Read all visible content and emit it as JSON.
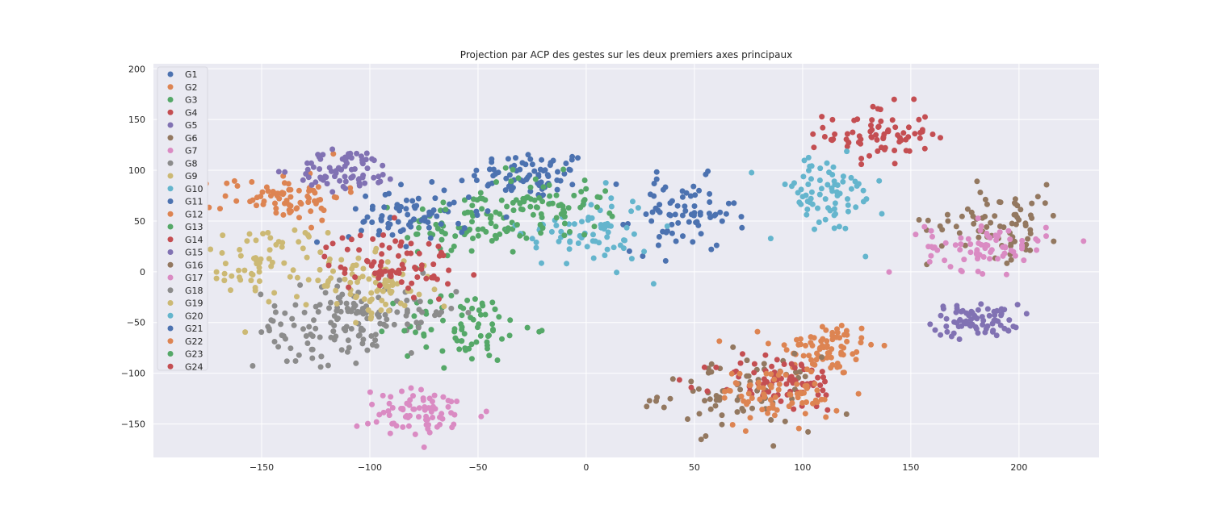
{
  "chart_data": {
    "type": "scatter",
    "title": "Projection par ACP des gestes sur les deux premiers axes principaux",
    "xlabel": "",
    "ylabel": "",
    "xlim": [
      -200,
      237
    ],
    "ylim": [
      -183,
      205
    ],
    "xticks": [
      -150,
      -100,
      -50,
      0,
      50,
      100,
      150,
      200
    ],
    "yticks": [
      -150,
      -100,
      -50,
      0,
      50,
      100,
      150,
      200
    ],
    "grid": true,
    "legend_position": "upper-left",
    "background": "#eaeaf2",
    "series": [
      {
        "name": "G1",
        "color": "#4c72b0",
        "cx": -25,
        "cy": 95,
        "sx": 14,
        "sy": 12
      },
      {
        "name": "G2",
        "color": "#dd8452",
        "cx": 110,
        "cy": -75,
        "sx": 12,
        "sy": 14
      },
      {
        "name": "G3",
        "color": "#55a868",
        "cx": -55,
        "cy": 45,
        "sx": 15,
        "sy": 18
      },
      {
        "name": "G4",
        "color": "#c44e52",
        "cx": 135,
        "cy": 135,
        "sx": 12,
        "sy": 15
      },
      {
        "name": "G5",
        "color": "#8172b3",
        "cx": 180,
        "cy": -48,
        "sx": 10,
        "sy": 8
      },
      {
        "name": "G6",
        "color": "#937860",
        "cx": 70,
        "cy": -120,
        "sx": 18,
        "sy": 18
      },
      {
        "name": "G7",
        "color": "#da8bc3",
        "cx": -75,
        "cy": -140,
        "sx": 15,
        "sy": 12
      },
      {
        "name": "G8",
        "color": "#8c8c8c",
        "cx": -125,
        "cy": -55,
        "sx": 14,
        "sy": 20
      },
      {
        "name": "G9",
        "color": "#ccb974",
        "cx": -150,
        "cy": 10,
        "sx": 15,
        "sy": 18
      },
      {
        "name": "G10",
        "color": "#64b5cd",
        "cx": 110,
        "cy": 75,
        "sx": 14,
        "sy": 20
      },
      {
        "name": "G11",
        "color": "#4c72b0",
        "cx": 45,
        "cy": 55,
        "sx": 12,
        "sy": 18
      },
      {
        "name": "G12",
        "color": "#dd8452",
        "cx": -140,
        "cy": 75,
        "sx": 14,
        "sy": 12
      },
      {
        "name": "G13",
        "color": "#55a868",
        "cx": -55,
        "cy": -55,
        "sx": 15,
        "sy": 18
      },
      {
        "name": "G14",
        "color": "#c44e52",
        "cx": 90,
        "cy": -110,
        "sx": 15,
        "sy": 14
      },
      {
        "name": "G15",
        "color": "#8172b3",
        "cx": -110,
        "cy": 100,
        "sx": 12,
        "sy": 10
      },
      {
        "name": "G16",
        "color": "#937860",
        "cx": 190,
        "cy": 50,
        "sx": 16,
        "sy": 18
      },
      {
        "name": "G17",
        "color": "#da8bc3",
        "cx": 185,
        "cy": 25,
        "sx": 14,
        "sy": 12
      },
      {
        "name": "G18",
        "color": "#8c8c8c",
        "cx": -95,
        "cy": -40,
        "sx": 18,
        "sy": 15
      },
      {
        "name": "G19",
        "color": "#ccb974",
        "cx": -100,
        "cy": -15,
        "sx": 15,
        "sy": 15
      },
      {
        "name": "G20",
        "color": "#64b5cd",
        "cx": 0,
        "cy": 40,
        "sx": 15,
        "sy": 18
      },
      {
        "name": "G21",
        "color": "#4c72b0",
        "cx": -80,
        "cy": 55,
        "sx": 15,
        "sy": 14
      },
      {
        "name": "G22",
        "color": "#dd8452",
        "cx": 90,
        "cy": -120,
        "sx": 14,
        "sy": 14
      },
      {
        "name": "G23",
        "color": "#55a868",
        "cx": -20,
        "cy": 65,
        "sx": 15,
        "sy": 15
      },
      {
        "name": "G24",
        "color": "#c44e52",
        "cx": -90,
        "cy": 10,
        "sx": 15,
        "sy": 15
      }
    ]
  }
}
